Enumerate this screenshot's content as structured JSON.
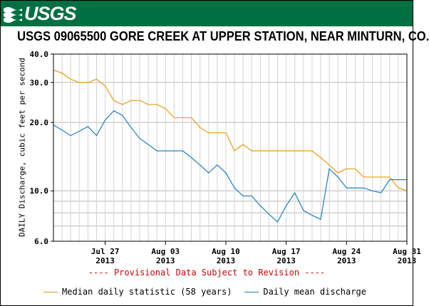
{
  "banner": {
    "logo_text": "USGS",
    "color": "#006f41"
  },
  "chart_data": {
    "type": "line",
    "title": "USGS 09065500 GORE CREEK AT UPPER STATION, NEAR MINTURN, CO.",
    "ylabel": "DAILY Discharge, cubic feet per second",
    "xlabel": "",
    "yscale": "log",
    "ylim": [
      6,
      40
    ],
    "y_ticks": [
      {
        "value": 6,
        "label": "6.0"
      },
      {
        "value": 10,
        "label": "10.0"
      },
      {
        "value": 20,
        "label": "20.0"
      },
      {
        "value": 30,
        "label": "30.0"
      },
      {
        "value": 40,
        "label": "40.0"
      }
    ],
    "y_gridlines": [
      6,
      7,
      8,
      9,
      10,
      20,
      30,
      40
    ],
    "xlim": [
      "2013-07-21",
      "2013-08-31"
    ],
    "x_ticks": [
      {
        "date": "2013-07-27",
        "label": "Jul 27",
        "year": "2013"
      },
      {
        "date": "2013-08-03",
        "label": "Aug 03",
        "year": "2013"
      },
      {
        "date": "2013-08-10",
        "label": "Aug 10",
        "year": "2013"
      },
      {
        "date": "2013-08-17",
        "label": "Aug 17",
        "year": "2013"
      },
      {
        "date": "2013-08-24",
        "label": "Aug 24",
        "year": "2013"
      },
      {
        "date": "2013-08-31",
        "label": "Aug 31",
        "year": "2013"
      }
    ],
    "grid": true,
    "legend_position": "bottom",
    "x": [
      "2013-07-21",
      "2013-07-22",
      "2013-07-23",
      "2013-07-24",
      "2013-07-25",
      "2013-07-26",
      "2013-07-27",
      "2013-07-28",
      "2013-07-29",
      "2013-07-30",
      "2013-07-31",
      "2013-08-01",
      "2013-08-02",
      "2013-08-03",
      "2013-08-04",
      "2013-08-05",
      "2013-08-06",
      "2013-08-07",
      "2013-08-08",
      "2013-08-09",
      "2013-08-10",
      "2013-08-11",
      "2013-08-12",
      "2013-08-13",
      "2013-08-14",
      "2013-08-15",
      "2013-08-16",
      "2013-08-17",
      "2013-08-18",
      "2013-08-19",
      "2013-08-20",
      "2013-08-21",
      "2013-08-22",
      "2013-08-23",
      "2013-08-24",
      "2013-08-25",
      "2013-08-26",
      "2013-08-27",
      "2013-08-28",
      "2013-08-29",
      "2013-08-30",
      "2013-08-31"
    ],
    "series": [
      {
        "name": "Median daily statistic (58 years)",
        "color": "#e89b12",
        "values": [
          34,
          33,
          31,
          30,
          30,
          31,
          29,
          25,
          24,
          25,
          25,
          24,
          24,
          23,
          21,
          21,
          21,
          19,
          18,
          18,
          18,
          15,
          16,
          15,
          15,
          15,
          15,
          15,
          15,
          15,
          15,
          14,
          13,
          12,
          12.5,
          12.5,
          11.5,
          11.5,
          11.5,
          11.5,
          10.3,
          10.0
        ]
      },
      {
        "name": "Daily mean discharge",
        "color": "#1e7fbf",
        "values": [
          19.5,
          18.5,
          17.5,
          18.3,
          19.2,
          17.5,
          20.5,
          22.5,
          21.5,
          19,
          17,
          16,
          15,
          15,
          15,
          15,
          14,
          13,
          12,
          13,
          12,
          10.3,
          9.5,
          9.5,
          8.6,
          7.9,
          7.3,
          8.6,
          9.8,
          8.2,
          7.8,
          7.5,
          12.5,
          11.5,
          10.3,
          10.3,
          10.3,
          10.0,
          9.8,
          11.2,
          11.2,
          11.2
        ]
      }
    ]
  },
  "provisional_note": "---- Provisional Data Subject to Revision ----"
}
